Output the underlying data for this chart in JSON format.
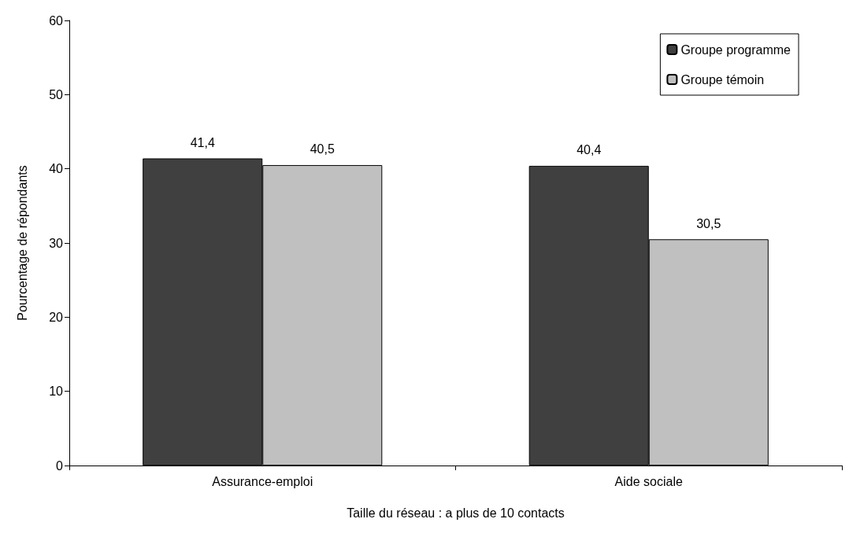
{
  "chart_data": {
    "type": "bar",
    "xlabel": "Taille du réseau : a plus de 10 contacts",
    "ylabel": "Pourcentage de répondants",
    "categories": [
      "Assurance-emploi",
      "Aide sociale"
    ],
    "series": [
      {
        "name": "Groupe programme",
        "color": "#404040",
        "values": [
          41.4,
          40.4
        ],
        "value_labels": [
          "41,4",
          "40,4"
        ]
      },
      {
        "name": "Groupe témoin",
        "color": "#c0c0c0",
        "values": [
          40.5,
          30.5
        ],
        "value_labels": [
          "40,5",
          "30,5"
        ]
      }
    ],
    "ylim": [
      0,
      60
    ],
    "yticks": [
      0,
      10,
      20,
      30,
      40,
      50,
      60
    ],
    "grid": false,
    "legend": "top right"
  }
}
